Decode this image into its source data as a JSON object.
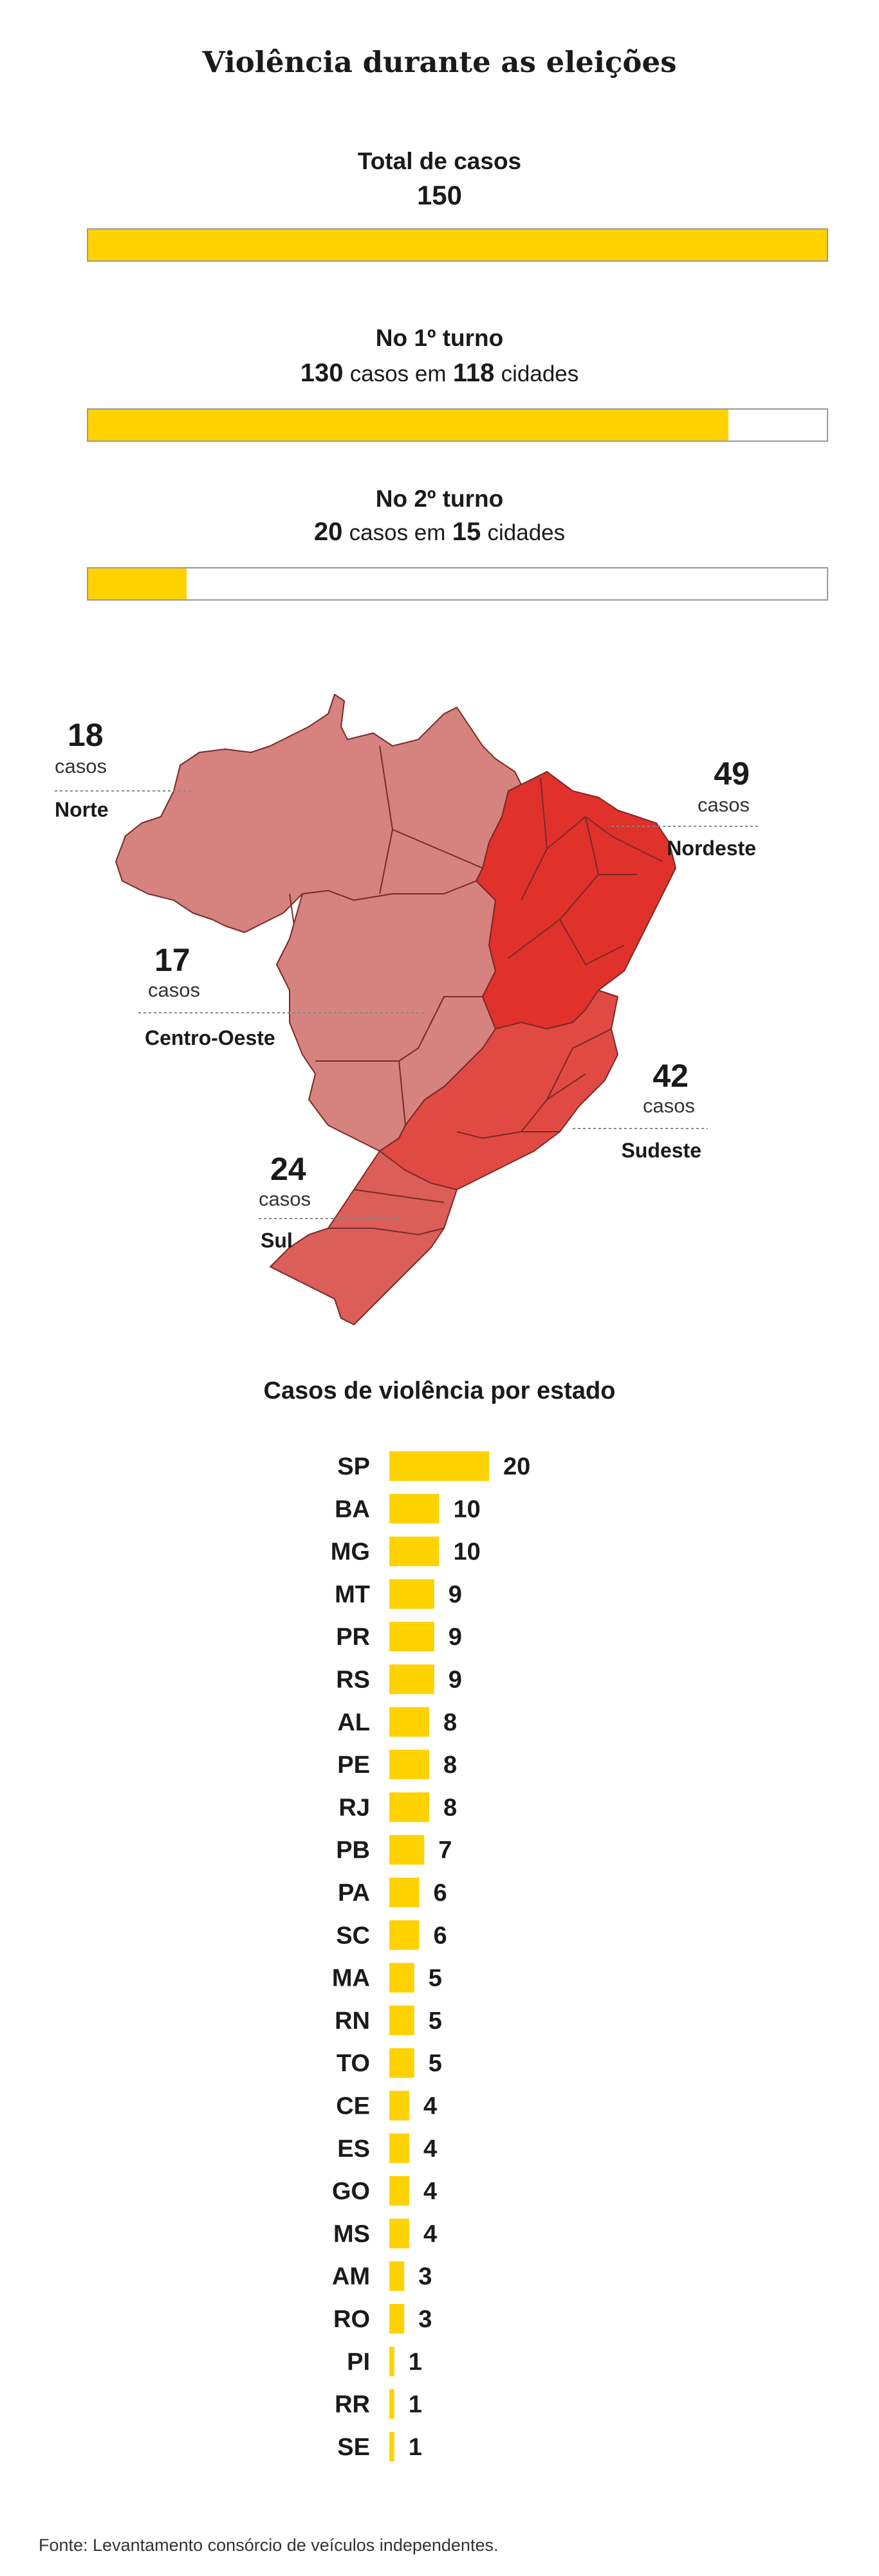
{
  "title": "Violência durante as eleições",
  "total": {
    "label": "Total de casos",
    "value": "150",
    "fraction": 1.0
  },
  "turno1": {
    "label": "No 1º turno",
    "cases": "130",
    "casos_word": "casos em",
    "cities": "118",
    "cidades_word": "cidades",
    "fraction": 0.8667
  },
  "turno2": {
    "label": "No 2º turno",
    "cases": "20",
    "casos_word": "casos em",
    "cities": "15",
    "cidades_word": "cidades",
    "fraction": 0.1333
  },
  "colors": {
    "bar": "#ffd200",
    "norte": "#d6837f",
    "centro_oeste": "#d6837f",
    "nordeste": "#e0312b",
    "sudeste": "#e04a43",
    "sul": "#db5e59",
    "border": "#7a2a28"
  },
  "regions": {
    "norte": {
      "value": "18",
      "casos": "casos",
      "name": "Norte"
    },
    "nordeste": {
      "value": "49",
      "casos": "casos",
      "name": "Nordeste"
    },
    "centro_oeste": {
      "value": "17",
      "casos": "casos",
      "name": "Centro-Oeste"
    },
    "sudeste": {
      "value": "42",
      "casos": "casos",
      "name": "Sudeste"
    },
    "sul": {
      "value": "24",
      "casos": "casos",
      "name": "Sul"
    }
  },
  "chart_data": {
    "type": "bar",
    "title": "Casos de violência por estado",
    "categories": [
      "SP",
      "BA",
      "MG",
      "MT",
      "PR",
      "RS",
      "AL",
      "PE",
      "RJ",
      "PB",
      "PA",
      "SC",
      "MA",
      "RN",
      "TO",
      "CE",
      "ES",
      "GO",
      "MS",
      "AM",
      "RO",
      "PI",
      "RR",
      "SE"
    ],
    "values": [
      20,
      10,
      10,
      9,
      9,
      9,
      8,
      8,
      8,
      7,
      6,
      6,
      5,
      5,
      5,
      4,
      4,
      4,
      4,
      3,
      3,
      1,
      1,
      1
    ],
    "xlim": [
      0,
      20
    ]
  },
  "source": "Fonte: Levantamento consórcio de veículos independentes."
}
